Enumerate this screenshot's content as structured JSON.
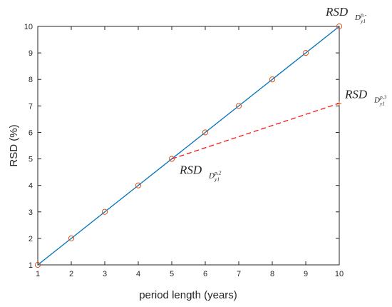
{
  "chart_data": {
    "type": "line",
    "xlabel": "period length (years)",
    "ylabel": "RSD (%)",
    "xlim": [
      1,
      10
    ],
    "ylim": [
      1,
      10
    ],
    "xticks": [
      1,
      2,
      3,
      4,
      5,
      6,
      7,
      8,
      9,
      10
    ],
    "yticks": [
      1,
      2,
      3,
      4,
      5,
      6,
      7,
      8,
      9,
      10
    ],
    "grid": false,
    "series": [
      {
        "style": "solid",
        "color": "#0072BD",
        "x": [
          1,
          10
        ],
        "y": [
          1,
          10
        ]
      },
      {
        "style": "markers",
        "marker": "circle",
        "color": "#D95319",
        "x": [
          1,
          2,
          3,
          4,
          5,
          6,
          7,
          8,
          9,
          10
        ],
        "y": [
          1,
          2,
          3,
          4,
          5,
          6,
          7,
          8,
          9,
          10
        ]
      },
      {
        "style": "dashed",
        "color": "#FF0000",
        "x": [
          5,
          10
        ],
        "y": [
          5,
          7.1
        ]
      },
      {
        "style": "marker",
        "marker": "plus",
        "color": "#D95319",
        "x": [
          10
        ],
        "y": [
          7.1
        ]
      }
    ],
    "annotations": [
      {
        "id": "a1",
        "text": "RSD",
        "sub": "D",
        "subsub": "y1",
        "sup": "p,2",
        "x": 5,
        "y": 5
      },
      {
        "id": "a2",
        "text": "RSD",
        "sub": "D",
        "subsub": "y1",
        "sup": "p,3",
        "x": 10,
        "y": 7.1
      },
      {
        "id": "a3",
        "text": "RSD",
        "sub": "D",
        "subsub": "y1",
        "sup": "p,-",
        "x": 10,
        "y": 10
      }
    ]
  }
}
